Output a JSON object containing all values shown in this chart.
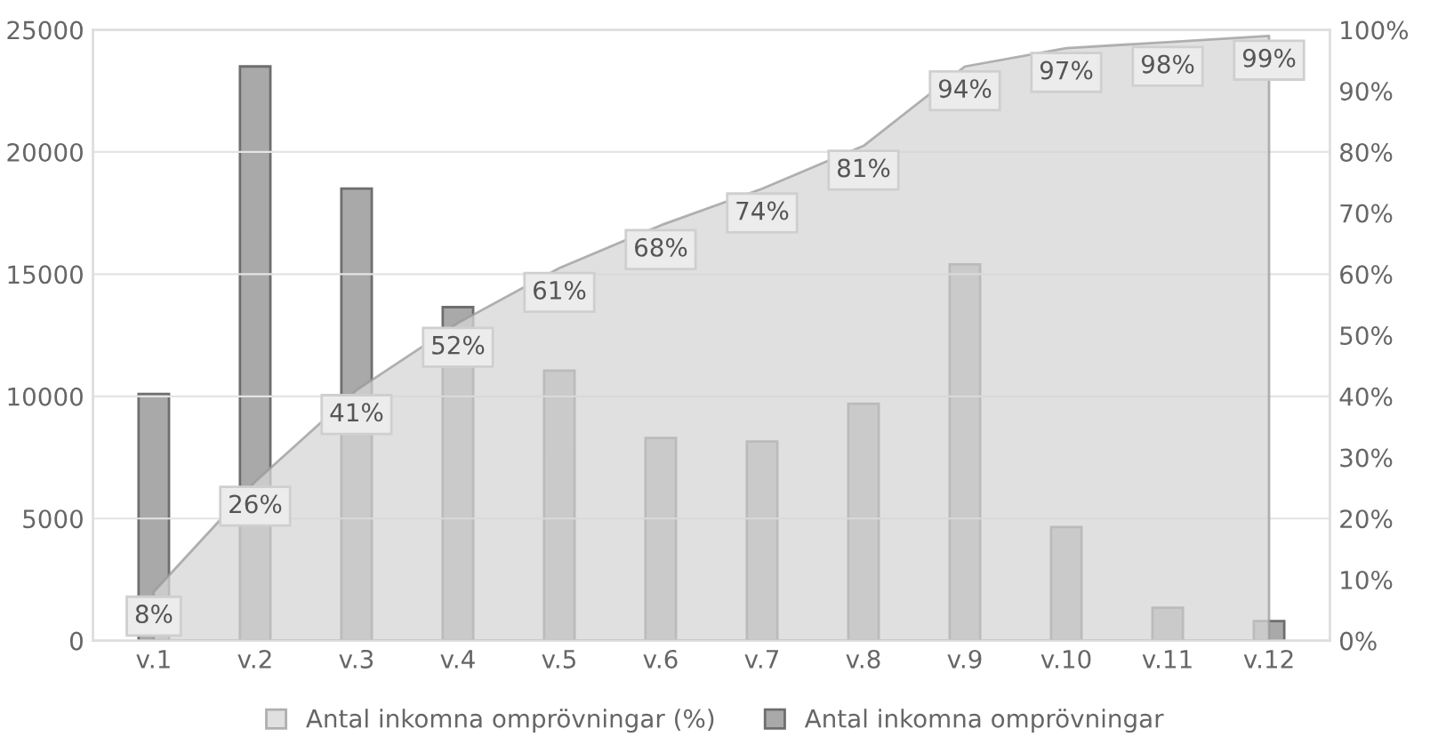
{
  "chart_data": {
    "type": "bar",
    "categories": [
      "v.1",
      "v.2",
      "v.3",
      "v.4",
      "v.5",
      "v.6",
      "v.7",
      "v.8",
      "v.9",
      "v.10",
      "v.11",
      "v.12"
    ],
    "series": [
      {
        "name": "Antal inkomna omprövningar (%)",
        "type": "area",
        "axis": "y2",
        "color": "#d6d6d6",
        "value_labels": [
          "8%",
          "26%",
          "41%",
          "52%",
          "61%",
          "68%",
          "74%",
          "81%",
          "94%",
          "97%",
          "98%",
          "99%"
        ],
        "values": [
          8,
          26,
          41,
          52,
          61,
          68,
          74,
          81,
          94,
          97,
          98,
          99
        ]
      },
      {
        "name": "Antal inkomna omprövningar",
        "color": "#a9a9a9",
        "values": [
          10100,
          23500,
          18500,
          13650,
          11050,
          8300,
          8150,
          9700,
          15400,
          4650,
          1350,
          800
        ]
      }
    ],
    "ylim": [
      0,
      25000
    ],
    "yticks": [
      0,
      5000,
      10000,
      15000,
      20000,
      25000
    ],
    "y2lim": [
      0,
      100
    ],
    "y2ticks": [
      {
        "value": 0,
        "label": "0%"
      },
      {
        "value": 10,
        "label": "10%"
      },
      {
        "value": 20,
        "label": "20%"
      },
      {
        "value": 30,
        "label": "30%"
      },
      {
        "value": 40,
        "label": "40%"
      },
      {
        "value": 50,
        "label": "50%"
      },
      {
        "value": 60,
        "label": "60%"
      },
      {
        "value": 70,
        "label": "70%"
      },
      {
        "value": 80,
        "label": "80%"
      },
      {
        "value": 90,
        "label": "90%"
      },
      {
        "value": 100,
        "label": "100%"
      }
    ],
    "grid": "y",
    "legend": "bottom"
  }
}
